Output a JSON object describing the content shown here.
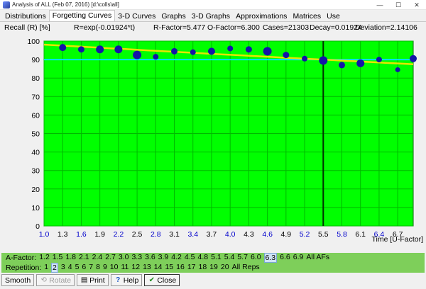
{
  "window": {
    "title": "Analysis of ALL (Feb 07, 2016) [d:\\colls\\all]",
    "minimize": "—",
    "maximize": "☐",
    "close": "✕"
  },
  "tabs": [
    "Distributions",
    "Forgetting Curves",
    "3-D Curves",
    "Graphs",
    "3-D Graphs",
    "Approximations",
    "Matrices",
    "Use"
  ],
  "info": {
    "axis_label": "Recall (R) [%]",
    "formula": "R=exp(-0.01924*t)",
    "r_factor": "R-Factor=5.477",
    "o_factor": "O-Factor=6.300",
    "cases": "Cases=21303",
    "decay": "Decay=0.01924",
    "deviation": "Deviation=2.14106"
  },
  "chart_data": {
    "type": "scatter",
    "xlabel": "Time [U-Factor]",
    "ylabel": "Recall (R) [%]",
    "xlim": [
      1.0,
      6.95
    ],
    "ylim": [
      0,
      100
    ],
    "x_ticks": [
      "1.0",
      "1.3",
      "1.6",
      "1.9",
      "2.2",
      "2.5",
      "2.8",
      "3.1",
      "3.4",
      "3.7",
      "4.0",
      "4.3",
      "4.6",
      "4.9",
      "5.2",
      "5.5",
      "5.8",
      "6.1",
      "6.4",
      "6.7"
    ],
    "y_ticks": [
      0,
      10,
      20,
      30,
      40,
      50,
      60,
      70,
      80,
      90,
      100
    ],
    "points": [
      {
        "x": 1.3,
        "y": 96.5,
        "s": 5
      },
      {
        "x": 1.6,
        "y": 95.5,
        "s": 4.5
      },
      {
        "x": 1.9,
        "y": 95.5,
        "s": 5.5
      },
      {
        "x": 2.2,
        "y": 95.5,
        "s": 5.5
      },
      {
        "x": 2.5,
        "y": 92.5,
        "s": 6
      },
      {
        "x": 2.8,
        "y": 91.5,
        "s": 4
      },
      {
        "x": 3.1,
        "y": 94.5,
        "s": 4.5
      },
      {
        "x": 3.4,
        "y": 94,
        "s": 4
      },
      {
        "x": 3.7,
        "y": 94.5,
        "s": 5
      },
      {
        "x": 4.0,
        "y": 96,
        "s": 4
      },
      {
        "x": 4.3,
        "y": 95.5,
        "s": 4.5
      },
      {
        "x": 4.6,
        "y": 94.5,
        "s": 6
      },
      {
        "x": 4.9,
        "y": 92.5,
        "s": 4.5
      },
      {
        "x": 5.2,
        "y": 90.5,
        "s": 4
      },
      {
        "x": 5.5,
        "y": 89.5,
        "s": 6
      },
      {
        "x": 5.8,
        "y": 87,
        "s": 4.5
      },
      {
        "x": 6.1,
        "y": 88,
        "s": 5.5
      },
      {
        "x": 6.4,
        "y": 90,
        "s": 4
      },
      {
        "x": 6.7,
        "y": 84.5,
        "s": 3.5
      },
      {
        "x": 6.95,
        "y": 90.5,
        "s": 5
      }
    ],
    "curve": {
      "type": "exp",
      "decay": 0.01924,
      "x0": 1.0,
      "x1": 6.95
    },
    "hline": 90,
    "vline": 5.5,
    "grid": true,
    "colors": {
      "plot_bg": "#00ff00",
      "grid": "#00b800",
      "points": "#1414a8",
      "curve": "#e6e600",
      "hline": "#00e5ff",
      "vline": "#003300",
      "blue_tick": "#0000cc"
    }
  },
  "afactor": {
    "label": "A-Factor:",
    "items": [
      "1.2",
      "1.5",
      "1.8",
      "2.1",
      "2.4",
      "2.7",
      "3.0",
      "3.3",
      "3.6",
      "3.9",
      "4.2",
      "4.5",
      "4.8",
      "5.1",
      "5.4",
      "5.7",
      "6.0",
      "6.3",
      "6.6",
      "6.9",
      "All AFs"
    ],
    "selected": "6.3"
  },
  "repetition": {
    "label": "Repetition:",
    "items": [
      "1",
      "2",
      "3",
      "4",
      "5",
      "6",
      "7",
      "8",
      "9",
      "10",
      "11",
      "12",
      "13",
      "14",
      "15",
      "16",
      "17",
      "18",
      "19",
      "20",
      "All Reps"
    ],
    "selected": "2"
  },
  "toolbar": {
    "smooth": "Smooth",
    "rotate": "Rotate",
    "print": "Print",
    "help": "Help",
    "close": "Close",
    "icons": {
      "rotate": "rotate-icon",
      "print": "printer-icon",
      "help": "question-icon",
      "close": "checkmark-icon"
    }
  }
}
